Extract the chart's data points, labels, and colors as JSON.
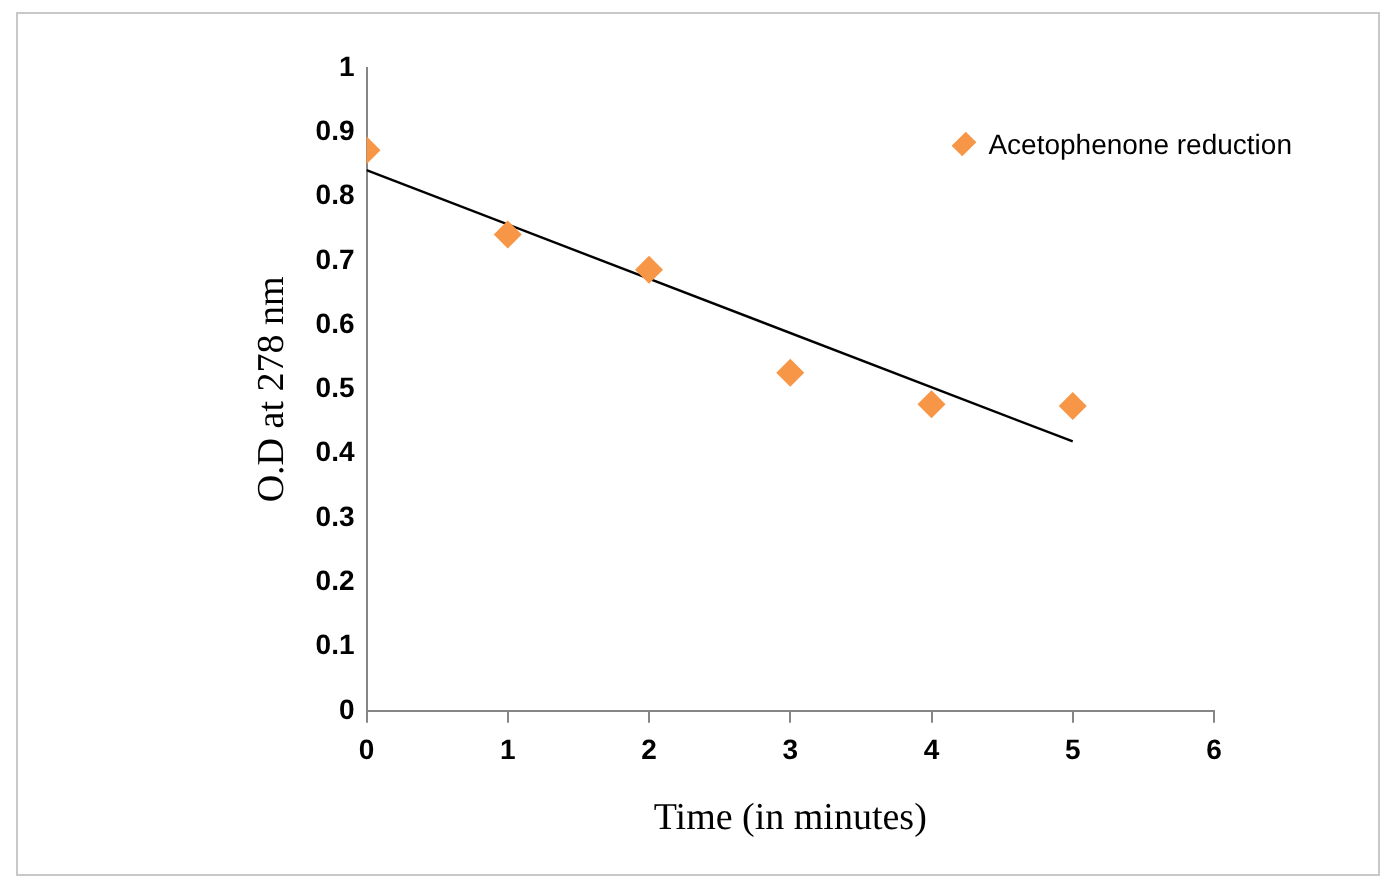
{
  "chart_data": {
    "type": "scatter",
    "xlabel": "Time (in minutes)",
    "ylabel": "O.D at 278 nm",
    "xlim": [
      0,
      6
    ],
    "xticks": [
      0,
      1,
      2,
      3,
      4,
      5,
      6
    ],
    "ylim": [
      0,
      1
    ],
    "yticks": [
      0,
      0.1,
      0.2,
      0.3,
      0.4,
      0.5,
      0.6,
      0.7,
      0.8,
      0.9,
      1
    ],
    "grid": false,
    "legend": "top right",
    "marker": "diamond",
    "series": [
      {
        "name": "Acetophenone reduction",
        "type": "scatter",
        "color": "#f79646",
        "x": [
          0,
          1,
          2,
          3,
          4,
          5
        ],
        "values": [
          0.872,
          0.741,
          0.686,
          0.526,
          0.477,
          0.474
        ]
      },
      {
        "type": "line",
        "color": "#000000",
        "marker": "none",
        "x": [
          0,
          5
        ],
        "values": [
          0.841,
          0.419
        ]
      }
    ]
  }
}
